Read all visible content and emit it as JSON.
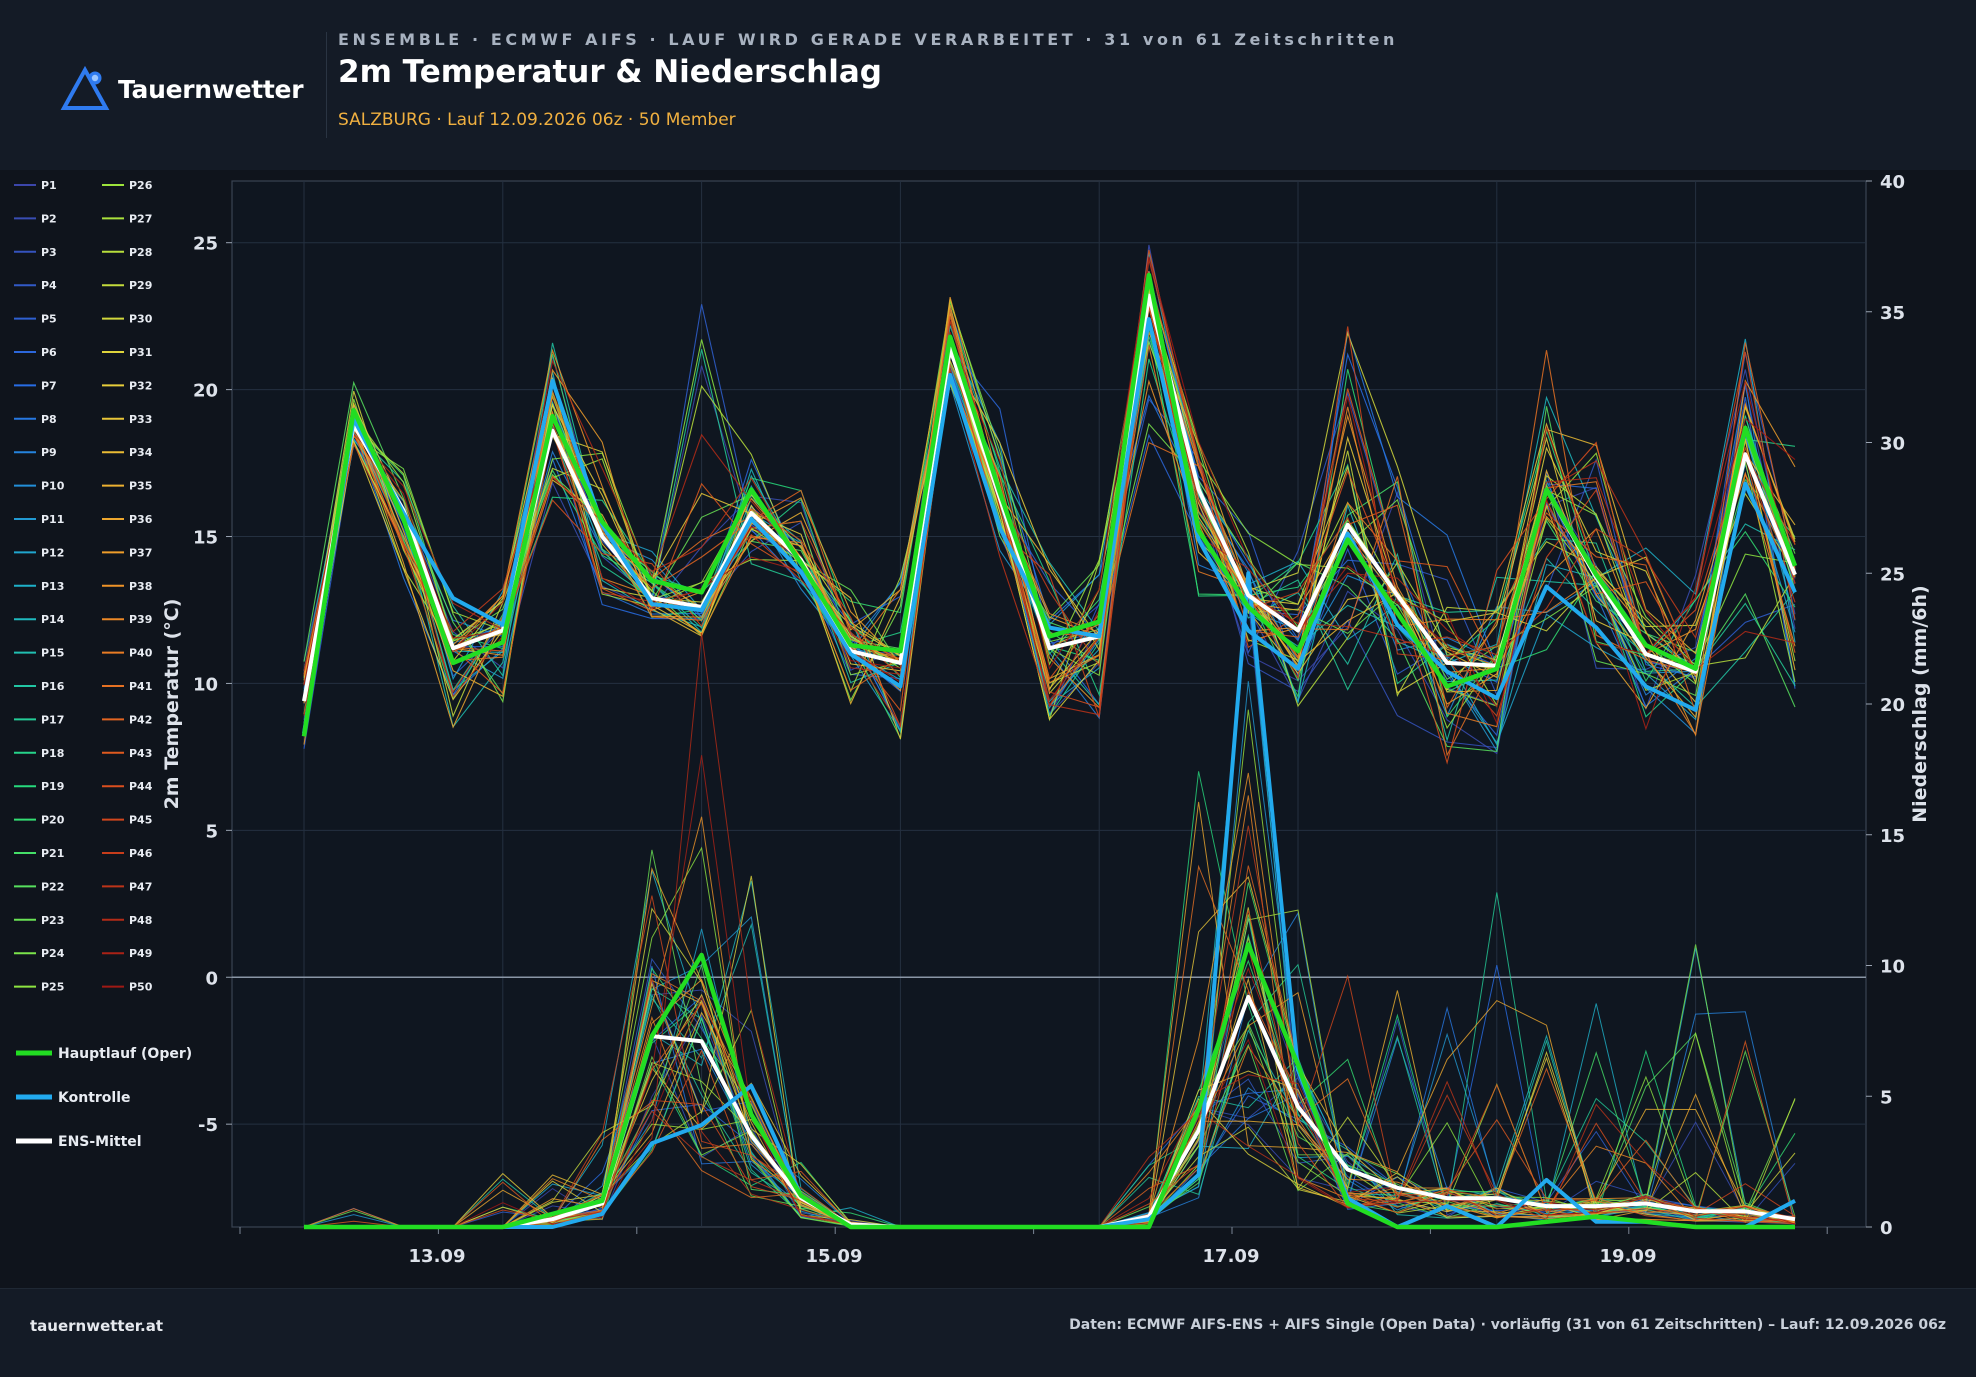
{
  "header": {
    "logo_text": "Tauernwetter",
    "kicker": "ENSEMBLE · ECMWF AIFS · LAUF WIRD GERADE VERARBEITET · 31 von 61 Zeitschritten",
    "title": "2m Temperatur & Niederschlag",
    "subtitle": "SALZBURG · Lauf 12.09.2026 06z · 50 Member"
  },
  "footer": {
    "site": "tauernwetter.at",
    "source": "Daten: ECMWF AIFS-ENS + AIFS Single (Open Data) · vorläufig (31 von 61 Zeitschritten) – Lauf: 12.09.2026 06z"
  },
  "colors": {
    "oper": "#22dd22",
    "control": "#22aaee",
    "mean": "#ffffff",
    "background": "#0f141c",
    "grid": "#2a3340"
  },
  "chart_data": {
    "type": "line",
    "x_tick_labels": [
      "13.09",
      "15.09",
      "17.09",
      "19.09"
    ],
    "x_tick_minor_count": 9,
    "y_left": {
      "label": "2m Temperatur (°C)",
      "lim": [
        -8.5,
        27.1
      ],
      "ticks": [
        -5,
        0,
        5,
        10,
        15,
        20,
        25
      ]
    },
    "y_right": {
      "label": "Niederschlag (mm/6h)",
      "lim": [
        0,
        40
      ],
      "ticks": [
        0,
        5,
        10,
        15,
        20,
        25,
        30,
        35,
        40
      ]
    },
    "zero_line": 0,
    "grid": true,
    "legend": {
      "placement": "left",
      "members": [
        "P1",
        "P2",
        "P3",
        "P4",
        "P5",
        "P6",
        "P7",
        "P8",
        "P9",
        "P10",
        "P11",
        "P12",
        "P13",
        "P14",
        "P15",
        "P16",
        "P17",
        "P18",
        "P19",
        "P20",
        "P21",
        "P22",
        "P23",
        "P24",
        "P25",
        "P26",
        "P27",
        "P28",
        "P29",
        "P30",
        "P31",
        "P32",
        "P33",
        "P34",
        "P35",
        "P36",
        "P37",
        "P38",
        "P39",
        "P40",
        "P41",
        "P42",
        "P43",
        "P44",
        "P45",
        "P46",
        "P47",
        "P48",
        "P49",
        "P50"
      ],
      "main": [
        "Hauptlauf (Oper)",
        "Kontrolle",
        "ENS-Mittel"
      ]
    },
    "time_steps": [
      "12.09 06z",
      "12.09 12z",
      "12.09 18z",
      "13.09 00z",
      "13.09 06z",
      "13.09 12z",
      "13.09 18z",
      "14.09 00z",
      "14.09 06z",
      "14.09 12z",
      "14.09 18z",
      "15.09 00z",
      "15.09 06z",
      "15.09 12z",
      "15.09 18z",
      "16.09 00z",
      "16.09 06z",
      "16.09 12z",
      "16.09 18z",
      "17.09 00z",
      "17.09 06z",
      "17.09 12z",
      "17.09 18z",
      "18.09 00z",
      "18.09 06z",
      "18.09 12z",
      "18.09 18z",
      "19.09 00z",
      "19.09 06z",
      "19.09 12z",
      "19.09 18z"
    ],
    "temperature": {
      "oper": [
        8.2,
        19.3,
        15.6,
        10.7,
        11.4,
        19.1,
        15.5,
        13.5,
        13.1,
        16.6,
        14.1,
        11.3,
        11.1,
        21.8,
        16.5,
        11.6,
        12.1,
        23.9,
        15.2,
        12.6,
        11.1,
        14.9,
        12.4,
        9.9,
        10.5,
        16.6,
        13.7,
        11.3,
        10.5,
        18.7,
        14.0
      ],
      "control": [
        8.3,
        19.0,
        15.8,
        12.9,
        12.0,
        20.3,
        15.4,
        12.7,
        12.5,
        15.6,
        13.8,
        11.0,
        9.9,
        20.5,
        15.3,
        11.9,
        11.6,
        22.4,
        14.9,
        11.8,
        10.5,
        15.1,
        12.0,
        10.4,
        9.5,
        13.3,
        11.9,
        9.9,
        9.1,
        16.8,
        13.1
      ],
      "mean": [
        9.4,
        18.8,
        15.9,
        11.2,
        11.8,
        18.6,
        15.0,
        12.9,
        12.6,
        15.8,
        14.2,
        11.1,
        10.7,
        21.4,
        16.3,
        11.2,
        11.6,
        23.2,
        16.6,
        13.0,
        11.8,
        15.4,
        13.0,
        10.7,
        10.6,
        16.6,
        13.6,
        11.0,
        10.4,
        17.8,
        13.7
      ],
      "members_range": [
        [
          7.5,
          11.0
        ],
        [
          18.0,
          20.6
        ],
        [
          13.3,
          17.6
        ],
        [
          8.0,
          12.9
        ],
        [
          8.8,
          13.7
        ],
        [
          15.4,
          21.8
        ],
        [
          12.3,
          18.6
        ],
        [
          12.0,
          14.6
        ],
        [
          11.5,
          24.9
        ],
        [
          13.7,
          18.1
        ],
        [
          13.1,
          17.0
        ],
        [
          9.1,
          13.7
        ],
        [
          7.5,
          14.2
        ],
        [
          20.0,
          23.4
        ],
        [
          13.9,
          20.0
        ],
        [
          8.5,
          14.8
        ],
        [
          8.4,
          14.7
        ],
        [
          17.0,
          25.3
        ],
        [
          12.3,
          18.5
        ],
        [
          10.3,
          15.4
        ],
        [
          8.7,
          14.7
        ],
        [
          9.1,
          22.9
        ],
        [
          8.3,
          18.3
        ],
        [
          6.9,
          15.6
        ],
        [
          7.1,
          14.2
        ],
        [
          10.4,
          25.0
        ],
        [
          9.9,
          19.3
        ],
        [
          8.0,
          14.8
        ],
        [
          7.8,
          13.9
        ],
        [
          9.7,
          22.6
        ],
        [
          8.4,
          18.7
        ]
      ]
    },
    "precipitation": {
      "oper": [
        0,
        0,
        0,
        0,
        0,
        0.5,
        1.0,
        7.3,
        10.4,
        4.3,
        1.2,
        0,
        0,
        0,
        0,
        0,
        0,
        0,
        4.5,
        10.8,
        6.2,
        0.9,
        0,
        0,
        0,
        0.2,
        0.4,
        0.2,
        0,
        0,
        0
      ],
      "control": [
        0,
        0,
        0,
        0,
        0,
        0,
        0.5,
        3.2,
        3.9,
        5.4,
        1.2,
        0,
        0,
        0,
        0,
        0,
        0,
        0.3,
        2.0,
        25.0,
        6.0,
        1.1,
        0,
        0.8,
        0,
        1.8,
        0.2,
        0.2,
        0,
        0,
        1.0
      ],
      "mean": [
        0,
        0,
        0,
        0,
        0,
        0.3,
        0.9,
        7.3,
        7.1,
        3.5,
        1.1,
        0.1,
        0,
        0,
        0,
        0,
        0,
        0.4,
        3.7,
        8.8,
        4.6,
        2.2,
        1.5,
        1.1,
        1.1,
        0.8,
        0.8,
        0.9,
        0.6,
        0.6,
        0.3
      ],
      "members_max": [
        0,
        0.8,
        0,
        0,
        2.2,
        2.3,
        6.0,
        15.0,
        23.5,
        13.5,
        2.5,
        0.8,
        0,
        0,
        0,
        0,
        0,
        3.0,
        17.5,
        25.0,
        14.5,
        9.7,
        9.2,
        9.1,
        15.2,
        8.5,
        11.5,
        7.4,
        11.4,
        11.4,
        5.2
      ]
    }
  }
}
